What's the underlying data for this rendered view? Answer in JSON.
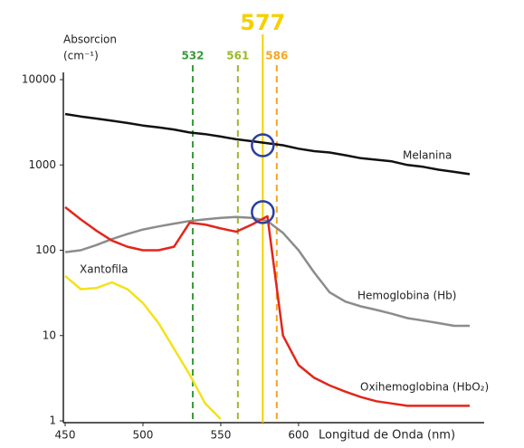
{
  "chart_data": {
    "type": "line",
    "y_label": [
      "Absorcion",
      "(cm⁻¹)"
    ],
    "x_label": "Longitud de Onda (nm)",
    "x": [
      450,
      460,
      470,
      480,
      490,
      500,
      510,
      520,
      530,
      540,
      550,
      560,
      570,
      580,
      590,
      600,
      610,
      620,
      630,
      640,
      650,
      660,
      670,
      680,
      690,
      700,
      710
    ],
    "xlim": [
      450,
      710
    ],
    "xticks": [
      450,
      500,
      550,
      600
    ],
    "ylim": [
      1,
      10000
    ],
    "yticks": [
      1,
      10,
      100,
      1000,
      10000
    ],
    "log_scale": true,
    "grid": false,
    "series": [
      {
        "name": "Melanina",
        "color": "#111111",
        "values": [
          3950,
          3700,
          3500,
          3300,
          3100,
          2900,
          2750,
          2600,
          2400,
          2300,
          2150,
          2000,
          1900,
          1800,
          1700,
          1550,
          1450,
          1400,
          1300,
          1200,
          1150,
          1100,
          1000,
          950,
          880,
          830,
          780
        ]
      },
      {
        "name": "Hemoglobina (Hb)",
        "color": "#8c8c8c",
        "values": [
          95,
          100,
          115,
          135,
          155,
          175,
          190,
          205,
          220,
          230,
          240,
          245,
          240,
          220,
          160,
          100,
          55,
          32,
          25,
          22,
          20,
          18,
          16,
          15,
          14,
          13,
          13
        ]
      },
      {
        "name": "Oxihemoglobina (HbO₂)",
        "color": "#e3261b",
        "values": [
          320,
          230,
          170,
          130,
          110,
          100,
          100,
          110,
          210,
          200,
          180,
          165,
          200,
          250,
          10,
          4.5,
          3.2,
          2.6,
          2.2,
          1.9,
          1.7,
          1.6,
          1.5,
          1.5,
          1.5,
          1.5,
          1.5
        ]
      },
      {
        "name": "Xantofila",
        "color": "#f2e21a",
        "values": [
          50,
          35,
          36,
          42,
          35,
          24,
          14,
          7,
          3.5,
          1.6,
          1.05,
          null,
          null,
          null,
          null,
          null,
          null,
          null,
          null,
          null,
          null,
          null,
          null,
          null,
          null,
          null,
          null
        ]
      }
    ],
    "annotations": [
      {
        "x": 532,
        "label": "532",
        "color": "#3a9a3a",
        "dashed": true
      },
      {
        "x": 561,
        "label": "561",
        "color": "#9ab82a",
        "dashed": true
      },
      {
        "x": 577,
        "label": "577",
        "color": "#f5d000",
        "dashed": false
      },
      {
        "x": 586,
        "label": "586",
        "color": "#f5a623",
        "dashed": true
      }
    ],
    "markers": [
      {
        "x": 577,
        "y": 1700,
        "color": "#2b3f9e"
      },
      {
        "x": 577,
        "y": 280,
        "color": "#2b3f9e"
      }
    ]
  }
}
